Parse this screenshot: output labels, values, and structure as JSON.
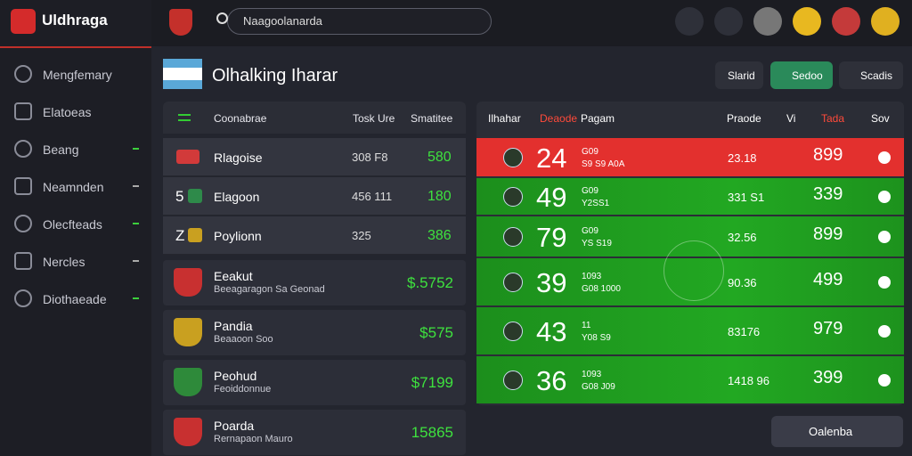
{
  "brand": "Uldhraga",
  "search": "Naagoolanarda",
  "nav": [
    "Mengfemary",
    "Elatoeas",
    "Beang",
    "Neamnden",
    "Olecfteads",
    "Nercles",
    "Diothaeade"
  ],
  "header": {
    "title": "Olhalking Iharar",
    "buttons": [
      "Slarid",
      "Sedoo",
      "Scadis"
    ]
  },
  "left_table": {
    "columns": [
      "Coonabrae",
      "Tosk Ure",
      "Smatitee"
    ],
    "rows": [
      {
        "rank": null,
        "name": "Rlagoise",
        "stat": "308  F8",
        "value": "580"
      },
      {
        "rank": "5",
        "name": "Elagoon",
        "stat": "456  111",
        "value": "180"
      },
      {
        "rank": "Z",
        "name": "Poylionn",
        "stat": "325",
        "value": "386"
      }
    ]
  },
  "cards": [
    {
      "name": "Eeakut",
      "sub": "Beeagaragon Sa Geonad",
      "value": "$.5752"
    },
    {
      "name": "Pandia",
      "sub": "Beaaoon Soo",
      "value": "$575"
    },
    {
      "name": "Peohud",
      "sub": "Feoiddonnue",
      "value": "$7199"
    },
    {
      "name": "Poarda",
      "sub": "Rernapaon Mauro",
      "value": "15865"
    }
  ],
  "right_table": {
    "columns": [
      "Ilhahar",
      "Deaode",
      "Pagam",
      "Praode",
      "Vi",
      "Tada",
      "Sov"
    ],
    "rows": [
      {
        "score": "24",
        "line1": "G09",
        "line2": "S9 S9 A0A",
        "mid": "23.18",
        "value": "899"
      },
      {
        "score": "49",
        "line1": "G09",
        "line2": "Y2SS1",
        "mid": "331 S1",
        "value": "339"
      },
      {
        "score": "79",
        "line1": "G09",
        "line2": "YS S19",
        "mid": "32.56",
        "value": "899"
      },
      {
        "score": "39",
        "line1": "1093",
        "line2": "G08 1000",
        "mid": "90.36",
        "value": "499"
      },
      {
        "score": "43",
        "line1": "11",
        "line2": "Y08 S9",
        "mid": "83176",
        "value": "979"
      },
      {
        "score": "36",
        "line1": "1093",
        "line2": "G08 J09",
        "mid": "1418 96",
        "value": "399"
      }
    ]
  },
  "footer_button": "Oalenba"
}
